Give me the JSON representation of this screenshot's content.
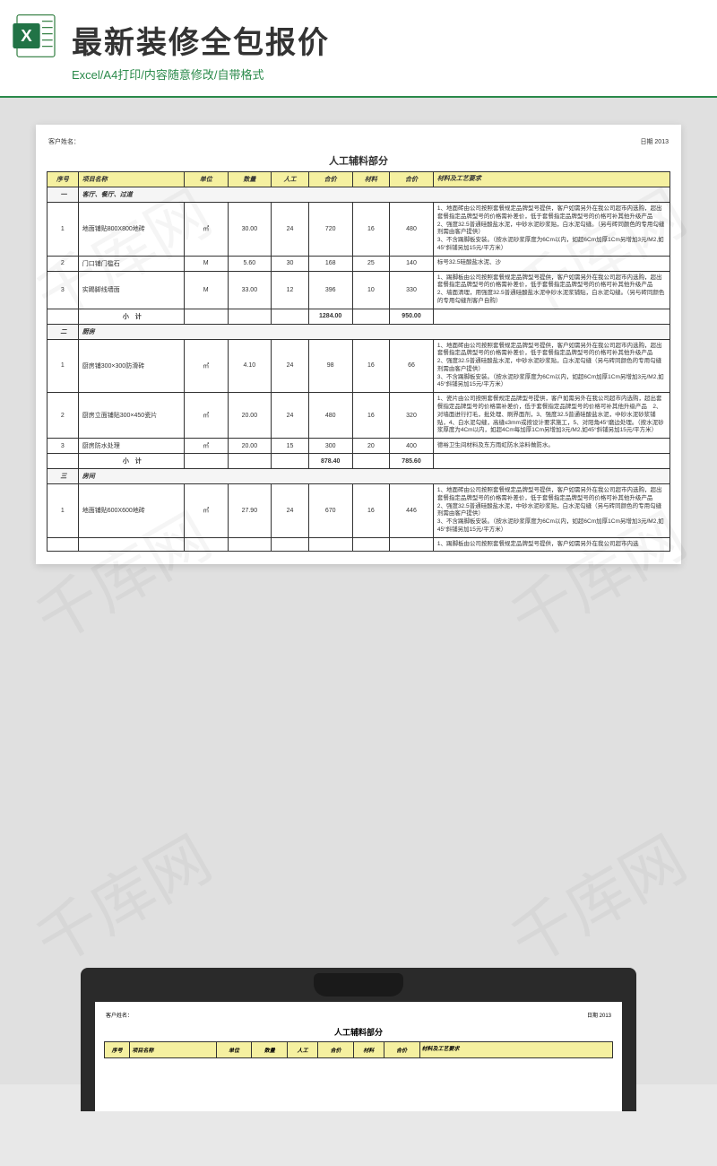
{
  "header": {
    "title": "最新装修全包报价",
    "subtitle": "Excel/A4打印/内容随意修改/自带格式"
  },
  "watermark": "千库网",
  "doc": {
    "customer_label": "客户姓名：",
    "date_label": "日期 2013",
    "section_title": "人工辅料部分",
    "columns": {
      "seq": "序号",
      "name": "项目名称",
      "unit": "单位",
      "qty": "数量",
      "labor": "人工",
      "sub1": "合价",
      "mat": "材料",
      "sub2": "合价",
      "desc": "材料及工艺要求"
    },
    "subtotal_label": "小　计",
    "sections": [
      {
        "seq": "一",
        "title": "客厅、餐厅、过道",
        "rows": [
          {
            "seq": "1",
            "name": "地面铺贴800X800地砖",
            "unit": "㎡",
            "qty": "30.00",
            "labor": "24",
            "sub1": "720",
            "mat": "16",
            "sub2": "480",
            "desc": "1、地面砖由公司按照套餐规定品牌型号提供，客户如需另外在我公司超市内选购，超出套餐指定品牌型号的价格需补差价，低于套餐指定品牌型号的价格可补其他升级产品\n2、强度32.5普通硅酸盐水泥，中砂水泥砂浆贴，白水泥勾缝。（另与砖同颜色的专用勾缝剂需由客户提供）\n3、不含踢脚板安装。（按水泥砂浆厚度为6Cm以内，如超6Cm加厚1Cm另增加3元/M2,如45°斜铺另加15元/平方米）"
          },
          {
            "seq": "2",
            "name": "门口铺门槛石",
            "unit": "M",
            "qty": "5.60",
            "labor": "30",
            "sub1": "168",
            "mat": "25",
            "sub2": "140",
            "desc": "标号32.5硅酸盐水泥、沙"
          },
          {
            "seq": "3",
            "name": "实踢脚线墙面",
            "unit": "M",
            "qty": "33.00",
            "labor": "12",
            "sub1": "396",
            "mat": "10",
            "sub2": "330",
            "desc": "1、踢脚板由公司按照套餐规定品牌型号提供，客户如需另外在我公司超市内选购，超出套餐指定品牌型号的价格需补差价，低于套餐指定品牌型号的价格可补其他升级产品\n2、墙面清理，用强度32.5普通硅酸盐水泥中砂水泥浆铺贴，白水泥勾缝。（另与砖同颜色的专用勾缝剂客户自购）"
          }
        ],
        "subtotal": {
          "sub1": "1284.00",
          "sub2": "950.00"
        }
      },
      {
        "seq": "二",
        "title": "厨房",
        "rows": [
          {
            "seq": "1",
            "name": "厨房铺300×300防滑砖",
            "unit": "㎡",
            "qty": "4.10",
            "labor": "24",
            "sub1": "98",
            "mat": "16",
            "sub2": "66",
            "desc": "1、地面砖由公司按照套餐规定品牌型号提供，客户如需另外在我公司超市内选购，超出套餐指定品牌型号的价格需补差价，低于套餐指定品牌型号的价格可补其他升级产品\n2、强度32.5普通硅酸盐水泥，中砂水泥砂浆贴，白水泥勾缝（另与砖同颜色的专用勾缝剂需由客户提供）\n3、不含踢脚板安装。（按水泥砂浆厚度为6Cm以内，如超6Cm加厚1Cm另增加3元/M2,如45°斜铺另加15元/平方米）"
          },
          {
            "seq": "2",
            "name": "厨房立面铺贴300×450瓷片",
            "unit": "㎡",
            "qty": "20.00",
            "labor": "24",
            "sub1": "480",
            "mat": "16",
            "sub2": "320",
            "desc": "1、瓷片由公司按照套餐规定品牌型号提供，客户如需另外在我公司超市内选购，超出套餐指定品牌型号的价格需补差价，低于套餐指定品牌型号的价格可补其他升级产品　2、对墙面进行打毛，批处理、刷界面剂，3、强度32.5普通硅酸盐水泥，中砂水泥砂浆铺贴，4、白水泥勾缝，高缝≤3mm或按设计要求施工，5、对阳角45°磨边处理。（按水泥砂浆厚度为4Cm以内，如超4Cm每加厚1Cm另增加3元/M2,如45°斜铺另加15元/平方米）"
          },
          {
            "seq": "3",
            "name": "厨房防水处理",
            "unit": "㎡",
            "qty": "20.00",
            "labor": "15",
            "sub1": "300",
            "mat": "20",
            "sub2": "400",
            "desc": "德裕卫生间材料及东方雨虹防水涂料做防水。"
          }
        ],
        "subtotal": {
          "sub1": "878.40",
          "sub2": "785.60"
        }
      },
      {
        "seq": "三",
        "title": "房间",
        "rows": [
          {
            "seq": "1",
            "name": "地面铺贴600X600地砖",
            "unit": "㎡",
            "qty": "27.90",
            "labor": "24",
            "sub1": "670",
            "mat": "16",
            "sub2": "446",
            "desc": "1、地面砖由公司按照套餐规定品牌型号提供，客户如需另外在我公司超市内选购，超出套餐指定品牌型号的价格需补差价，低于套餐指定品牌型号的价格可补其他升级产品\n2、强度32.5普通硅酸盐水泥，中砂水泥砂浆贴，白水泥勾缝（另与砖同颜色的专用勾缝剂需由客户提供）\n3、不含踢脚板安装。（按水泥砂浆厚度为6Cm以内，如超6Cm加厚1Cm另增加3元/M2,如45°斜铺另加15元/平方米）"
          },
          {
            "seq": "",
            "name": "",
            "unit": "",
            "qty": "",
            "labor": "",
            "sub1": "",
            "mat": "",
            "sub2": "",
            "desc": "1、踢脚板由公司按照套餐规定品牌型号提供，客户如需另外在我公司超市内选"
          }
        ]
      }
    ]
  },
  "colors": {
    "header_bg": "#f5f0a0",
    "accent": "#2a8a4a",
    "paper_bg": "#ffffff",
    "body_bg": "#e8e8e8"
  }
}
